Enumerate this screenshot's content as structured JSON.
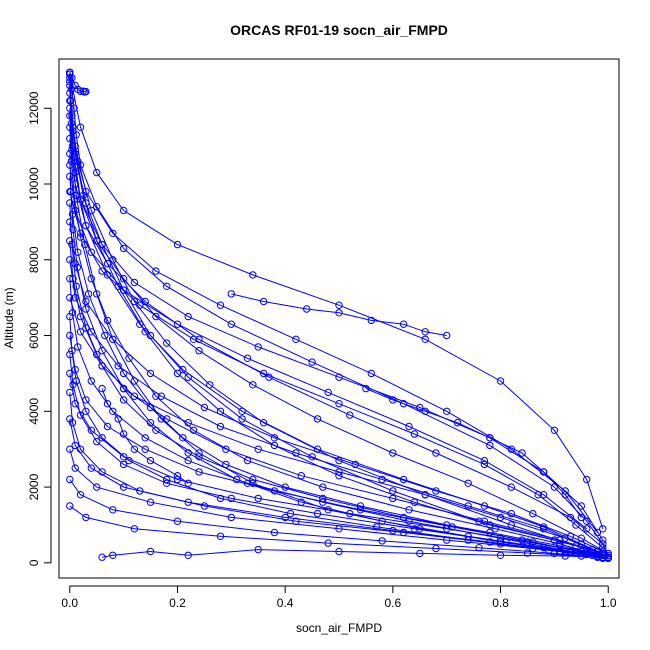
{
  "chart_data": {
    "type": "scatter",
    "title": "ORCAS RF01-19 socn_air_FMPD",
    "xlabel": "socn_air_FMPD",
    "ylabel": "Altitude (m)",
    "xlim": [
      -0.02,
      1.02
    ],
    "ylim": [
      -400,
      13300
    ],
    "x_ticks": [
      0.0,
      0.2,
      0.4,
      0.6,
      0.8,
      1.0
    ],
    "x_tick_labels": [
      "0.0",
      "0.2",
      "0.4",
      "0.6",
      "0.8",
      "1.0"
    ],
    "y_ticks": [
      0,
      2000,
      4000,
      6000,
      8000,
      10000,
      12000
    ],
    "y_tick_labels": [
      "0",
      "2000",
      "4000",
      "6000",
      "8000",
      "10000",
      "12000"
    ],
    "grid": false,
    "marker": "open-circle",
    "style": "lines+points",
    "series_color": "#0000ff",
    "series": [
      {
        "name": "",
        "x": [
          0.0,
          0.003,
          0.008,
          0.012,
          0.02,
          0.05,
          0.1,
          0.18,
          0.3,
          0.45,
          0.62,
          0.78,
          0.9,
          0.96,
          0.99,
          1.0
        ],
        "y": [
          12950,
          12500,
          12000,
          11300,
          10500,
          9400,
          8300,
          7300,
          6300,
          5300,
          4200,
          3100,
          2000,
          1100,
          500,
          200
        ]
      },
      {
        "name": "",
        "x": [
          0.0,
          0.002,
          0.006,
          0.015,
          0.03,
          0.06,
          0.1,
          0.15,
          0.22,
          0.32,
          0.45,
          0.6,
          0.76,
          0.9,
          0.98,
          1.0
        ],
        "y": [
          12900,
          12200,
          11400,
          10500,
          9500,
          8400,
          7200,
          6000,
          4900,
          3800,
          2800,
          1900,
          1100,
          600,
          300,
          150
        ]
      },
      {
        "name": "",
        "x": [
          0.0,
          0.004,
          0.01,
          0.025,
          0.05,
          0.09,
          0.14,
          0.2,
          0.28,
          0.38,
          0.5,
          0.64,
          0.78,
          0.9,
          0.97,
          0.99
        ],
        "y": [
          12800,
          11800,
          10800,
          9700,
          8500,
          7300,
          6100,
          5000,
          4000,
          3100,
          2300,
          1600,
          1000,
          600,
          350,
          200
        ]
      },
      {
        "name": "",
        "x": [
          0.0,
          0.005,
          0.02,
          0.06,
          0.12,
          0.22,
          0.35,
          0.5,
          0.65,
          0.78,
          0.88,
          0.95,
          0.99
        ],
        "y": [
          12700,
          11000,
          9600,
          8400,
          7400,
          6500,
          5700,
          4900,
          4100,
          3300,
          2400,
          1500,
          600
        ]
      },
      {
        "name": "",
        "x": [
          0.0,
          0.003,
          0.01,
          0.03,
          0.07,
          0.13,
          0.21,
          0.32,
          0.46,
          0.62,
          0.77,
          0.88,
          0.95,
          0.99
        ],
        "y": [
          12600,
          11600,
          10300,
          8900,
          7600,
          6300,
          5100,
          4000,
          3000,
          2200,
          1500,
          950,
          500,
          250
        ]
      },
      {
        "name": "",
        "x": [
          0.0,
          0.006,
          0.015,
          0.04,
          0.08,
          0.12,
          0.18,
          0.26,
          0.36,
          0.5,
          0.66,
          0.82,
          0.94,
          0.99
        ],
        "y": [
          12400,
          11500,
          10600,
          9300,
          8000,
          6900,
          5800,
          4700,
          3700,
          2700,
          1800,
          1000,
          450,
          200
        ]
      },
      {
        "name": "",
        "x": [
          0.0,
          0.01,
          0.03,
          0.08,
          0.16,
          0.28,
          0.42,
          0.56,
          0.7,
          0.82,
          0.92,
          0.98
        ],
        "y": [
          12200,
          11000,
          9800,
          8700,
          7700,
          6800,
          5900,
          5000,
          4000,
          3000,
          1900,
          800
        ]
      },
      {
        "name": "",
        "x": [
          0.0,
          0.004,
          0.012,
          0.028,
          0.05,
          0.08,
          0.12,
          0.17,
          0.24,
          0.34,
          0.48,
          0.65,
          0.8,
          0.92,
          0.98
        ],
        "y": [
          12000,
          10900,
          9700,
          8400,
          7100,
          5900,
          4800,
          3800,
          2900,
          2100,
          1400,
          900,
          550,
          300,
          180
        ]
      },
      {
        "name": "",
        "x": [
          0.0,
          0.008,
          0.02,
          0.05,
          0.1,
          0.16,
          0.24,
          0.34,
          0.46,
          0.6,
          0.74,
          0.86,
          0.95,
          1.0
        ],
        "y": [
          11800,
          10700,
          9600,
          8500,
          7500,
          6500,
          5600,
          4700,
          3800,
          2900,
          2100,
          1300,
          650,
          250
        ]
      },
      {
        "name": "",
        "x": [
          0.0,
          0.02,
          0.05,
          0.1,
          0.2,
          0.34,
          0.5,
          0.66,
          0.8,
          0.9,
          0.96,
          0.99
        ],
        "y": [
          12900,
          11500,
          10300,
          9300,
          8400,
          7600,
          6800,
          5900,
          4800,
          3500,
          2200,
          900
        ]
      },
      {
        "name": "",
        "x": [
          0.0,
          0.003,
          0.009,
          0.02,
          0.04,
          0.07,
          0.11,
          0.16,
          0.23,
          0.33,
          0.47,
          0.63,
          0.79,
          0.91,
          0.97,
          1.0
        ],
        "y": [
          11500,
          10600,
          9600,
          8600,
          7500,
          6400,
          5400,
          4400,
          3500,
          2700,
          2000,
          1400,
          900,
          500,
          250,
          120
        ]
      },
      {
        "name": "",
        "x": [
          0.0,
          0.01,
          0.03,
          0.07,
          0.14,
          0.24,
          0.37,
          0.52,
          0.68,
          0.82,
          0.93,
          0.99
        ],
        "y": [
          11200,
          10000,
          8900,
          7900,
          6900,
          5900,
          4900,
          3900,
          2900,
          2000,
          1200,
          500
        ]
      },
      {
        "name": "",
        "x": [
          0.0,
          0.002,
          0.006,
          0.014,
          0.03,
          0.06,
          0.1,
          0.15,
          0.22,
          0.31,
          0.43,
          0.58,
          0.74,
          0.88,
          0.97
        ],
        "y": [
          10800,
          9800,
          8800,
          7800,
          6700,
          5600,
          4600,
          3700,
          2900,
          2200,
          1600,
          1100,
          700,
          400,
          200
        ]
      },
      {
        "name": "",
        "x": [
          0.0,
          0.01,
          0.04,
          0.1,
          0.2,
          0.33,
          0.48,
          0.63,
          0.77,
          0.88,
          0.96
        ],
        "y": [
          10500,
          9300,
          8200,
          7200,
          6300,
          5400,
          4500,
          3600,
          2700,
          1800,
          900
        ]
      },
      {
        "name": "",
        "x": [
          0.0,
          0.005,
          0.015,
          0.035,
          0.065,
          0.1,
          0.15,
          0.21,
          0.29,
          0.4,
          0.54,
          0.7,
          0.84,
          0.95,
          1.0
        ],
        "y": [
          10200,
          9200,
          8200,
          7100,
          6000,
          5000,
          4100,
          3300,
          2600,
          2000,
          1500,
          1000,
          600,
          300,
          150
        ]
      },
      {
        "name": "",
        "x": [
          0.0,
          0.02,
          0.06,
          0.13,
          0.23,
          0.36,
          0.5,
          0.64,
          0.77,
          0.87,
          0.94,
          0.99
        ],
        "y": [
          9800,
          8700,
          7700,
          6800,
          5900,
          5000,
          4200,
          3400,
          2600,
          1800,
          1000,
          400
        ]
      },
      {
        "name": "",
        "x": [
          0.0,
          0.004,
          0.012,
          0.03,
          0.06,
          0.1,
          0.16,
          0.24,
          0.34,
          0.47,
          0.62,
          0.78,
          0.91,
          0.98
        ],
        "y": [
          9500,
          8400,
          7300,
          6200,
          5200,
          4300,
          3500,
          2800,
          2200,
          1700,
          1200,
          800,
          450,
          220
        ]
      },
      {
        "name": "",
        "x": [
          0.0,
          0.01,
          0.03,
          0.08,
          0.15,
          0.25,
          0.38,
          0.53,
          0.68,
          0.82,
          0.93,
          0.99
        ],
        "y": [
          9000,
          7900,
          6900,
          5900,
          5000,
          4100,
          3300,
          2600,
          1900,
          1300,
          700,
          300
        ]
      },
      {
        "name": "",
        "x": [
          0.0,
          0.006,
          0.02,
          0.05,
          0.1,
          0.18,
          0.29,
          0.43,
          0.6,
          0.77,
          0.91,
          0.99
        ],
        "y": [
          8500,
          7500,
          6500,
          5500,
          4600,
          3800,
          3000,
          2300,
          1700,
          1100,
          600,
          250
        ]
      },
      {
        "name": "",
        "x": [
          0.0,
          0.01,
          0.04,
          0.09,
          0.17,
          0.28,
          0.42,
          0.58,
          0.74,
          0.88,
          0.97
        ],
        "y": [
          8000,
          7000,
          6100,
          5200,
          4400,
          3600,
          2900,
          2200,
          1500,
          900,
          350
        ]
      },
      {
        "name": "",
        "x": [
          0.0,
          0.005,
          0.015,
          0.04,
          0.08,
          0.14,
          0.22,
          0.33,
          0.47,
          0.63,
          0.8,
          0.93,
          1.0
        ],
        "y": [
          7500,
          6600,
          5700,
          4800,
          4000,
          3300,
          2700,
          2100,
          1600,
          1100,
          650,
          300,
          120
        ]
      },
      {
        "name": "",
        "x": [
          0.0,
          0.02,
          0.06,
          0.12,
          0.22,
          0.35,
          0.5,
          0.66,
          0.8,
          0.92,
          0.99
        ],
        "y": [
          7000,
          6100,
          5200,
          4400,
          3700,
          3000,
          2400,
          1800,
          1200,
          650,
          250
        ]
      },
      {
        "name": "",
        "x": [
          0.0,
          0.004,
          0.012,
          0.03,
          0.06,
          0.11,
          0.18,
          0.28,
          0.41,
          0.57,
          0.74,
          0.89,
          0.98
        ],
        "y": [
          6500,
          5600,
          4800,
          4000,
          3300,
          2700,
          2200,
          1700,
          1300,
          950,
          600,
          330,
          160
        ]
      },
      {
        "name": "",
        "x": [
          0.0,
          0.01,
          0.03,
          0.07,
          0.14,
          0.24,
          0.38,
          0.54,
          0.71,
          0.86,
          0.96
        ],
        "y": [
          6000,
          5100,
          4300,
          3600,
          3000,
          2400,
          1900,
          1400,
          950,
          550,
          250
        ]
      },
      {
        "name": "",
        "x": [
          0.0,
          0.006,
          0.02,
          0.05,
          0.1,
          0.18,
          0.3,
          0.46,
          0.64,
          0.81,
          0.94,
          1.0
        ],
        "y": [
          5500,
          4700,
          3900,
          3200,
          2600,
          2100,
          1700,
          1300,
          900,
          550,
          280,
          130
        ]
      },
      {
        "name": "",
        "x": [
          0.0,
          0.01,
          0.04,
          0.1,
          0.2,
          0.35,
          0.52,
          0.7,
          0.85,
          0.95,
          0.99
        ],
        "y": [
          5000,
          4200,
          3500,
          2800,
          2200,
          1700,
          1300,
          900,
          550,
          300,
          150
        ]
      },
      {
        "name": "",
        "x": [
          0.0,
          0.005,
          0.02,
          0.06,
          0.13,
          0.25,
          0.42,
          0.62,
          0.8,
          0.93,
          0.99
        ],
        "y": [
          4500,
          3700,
          3000,
          2400,
          1900,
          1500,
          1100,
          800,
          500,
          280,
          140
        ]
      },
      {
        "name": "",
        "x": [
          0.0,
          0.01,
          0.04,
          0.1,
          0.22,
          0.4,
          0.6,
          0.78,
          0.91,
          0.98
        ],
        "y": [
          3800,
          3100,
          2500,
          2000,
          1600,
          1200,
          850,
          550,
          300,
          160
        ]
      },
      {
        "name": "",
        "x": [
          0.0,
          0.01,
          0.05,
          0.15,
          0.3,
          0.5,
          0.7,
          0.86,
          0.96,
          1.0
        ],
        "y": [
          3000,
          2500,
          2000,
          1600,
          1200,
          900,
          600,
          380,
          220,
          120
        ]
      },
      {
        "name": "",
        "x": [
          0.0,
          0.02,
          0.08,
          0.2,
          0.38,
          0.58,
          0.76,
          0.9,
          0.98
        ],
        "y": [
          2200,
          1800,
          1400,
          1100,
          800,
          580,
          400,
          250,
          150
        ]
      },
      {
        "name": "",
        "x": [
          0.0,
          0.03,
          0.12,
          0.28,
          0.48,
          0.68,
          0.85,
          0.95,
          0.99
        ],
        "y": [
          1500,
          1200,
          900,
          700,
          520,
          380,
          260,
          180,
          120
        ]
      },
      {
        "name": "",
        "x": [
          0.06,
          0.08,
          0.15,
          0.22,
          0.35,
          0.5,
          0.65,
          0.8,
          0.92,
          0.98
        ],
        "y": [
          150,
          200,
          300,
          200,
          350,
          300,
          250,
          200,
          180,
          150
        ]
      },
      {
        "name": "",
        "x": [
          0.0,
          0.004,
          0.01,
          0.015,
          0.02,
          0.025,
          0.03,
          0.028
        ],
        "y": [
          12950,
          12800,
          12600,
          12500,
          12450,
          12450,
          12440,
          12430
        ]
      },
      {
        "name": "",
        "x": [
          0.06,
          0.07,
          0.09,
          0.1,
          0.12,
          0.15,
          0.2,
          0.22
        ],
        "y": [
          4600,
          4200,
          3800,
          3400,
          3000,
          2700,
          2300,
          2100
        ]
      },
      {
        "name": "",
        "x": [
          0.3,
          0.36,
          0.44,
          0.5,
          0.56,
          0.62,
          0.66,
          0.7
        ],
        "y": [
          7100,
          6900,
          6700,
          6600,
          6400,
          6300,
          6100,
          6000
        ]
      },
      {
        "name": "",
        "x": [
          0.55,
          0.6,
          0.66,
          0.72,
          0.78,
          0.84,
          0.88,
          0.92,
          0.95
        ],
        "y": [
          4600,
          4300,
          4000,
          3700,
          3300,
          2900,
          2400,
          1800,
          1200
        ]
      }
    ]
  }
}
